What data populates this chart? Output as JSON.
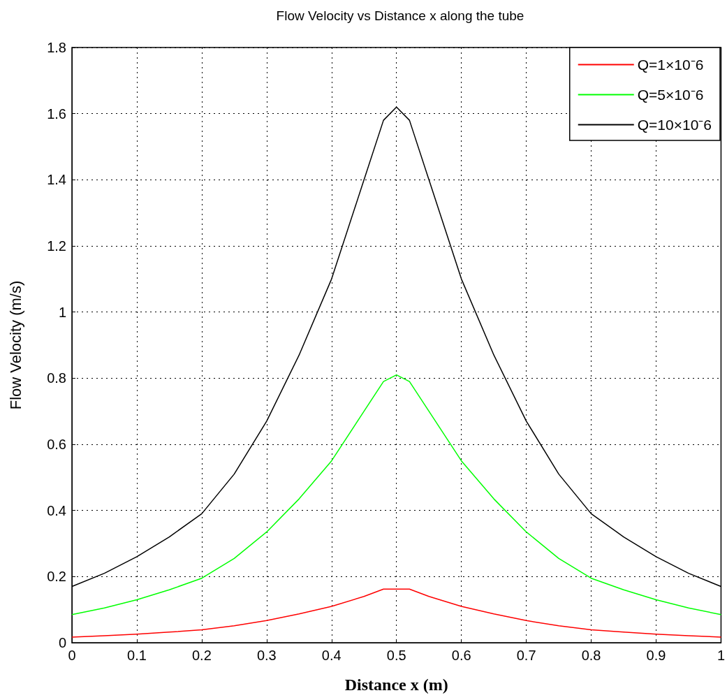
{
  "chart_data": {
    "type": "line",
    "title": "Flow Velocity vs Distance x along the tube",
    "xlabel": "Distance x (m)",
    "ylabel": "Flow Velocity (m/s)",
    "x": [
      0,
      0.05,
      0.1,
      0.15,
      0.2,
      0.25,
      0.3,
      0.35,
      0.4,
      0.45,
      0.48,
      0.5,
      0.52,
      0.55,
      0.6,
      0.65,
      0.7,
      0.75,
      0.8,
      0.85,
      0.9,
      0.95,
      1
    ],
    "series": [
      {
        "name": "Q=1×10⁻6",
        "color": "#ff0000",
        "values": [
          0.017,
          0.021,
          0.026,
          0.032,
          0.039,
          0.051,
          0.067,
          0.087,
          0.11,
          0.14,
          0.162,
          0.162,
          0.162,
          0.14,
          0.11,
          0.087,
          0.067,
          0.051,
          0.039,
          0.032,
          0.026,
          0.021,
          0.017
        ]
      },
      {
        "name": "Q=5×10⁻6",
        "color": "#00ff00",
        "values": [
          0.085,
          0.105,
          0.13,
          0.16,
          0.195,
          0.255,
          0.335,
          0.435,
          0.55,
          0.7,
          0.79,
          0.81,
          0.79,
          0.7,
          0.55,
          0.435,
          0.335,
          0.255,
          0.195,
          0.16,
          0.13,
          0.105,
          0.085
        ]
      },
      {
        "name": "Q=10×10⁻6",
        "color": "#000000",
        "values": [
          0.17,
          0.21,
          0.26,
          0.32,
          0.39,
          0.51,
          0.67,
          0.87,
          1.1,
          1.4,
          1.58,
          1.62,
          1.58,
          1.4,
          1.1,
          0.87,
          0.67,
          0.51,
          0.39,
          0.32,
          0.26,
          0.21,
          0.17
        ]
      }
    ],
    "xlim": [
      0,
      1
    ],
    "xticks": [
      0,
      0.1,
      0.2,
      0.3,
      0.4,
      0.5,
      0.6,
      0.7,
      0.8,
      0.9,
      1
    ],
    "ylim": [
      0,
      1.8
    ],
    "yticks": [
      0,
      0.2,
      0.4,
      0.6,
      0.8,
      1,
      1.2,
      1.4,
      1.6,
      1.8
    ],
    "grid": true,
    "legend": "top right",
    "marker": "none",
    "line_style": "solid"
  }
}
